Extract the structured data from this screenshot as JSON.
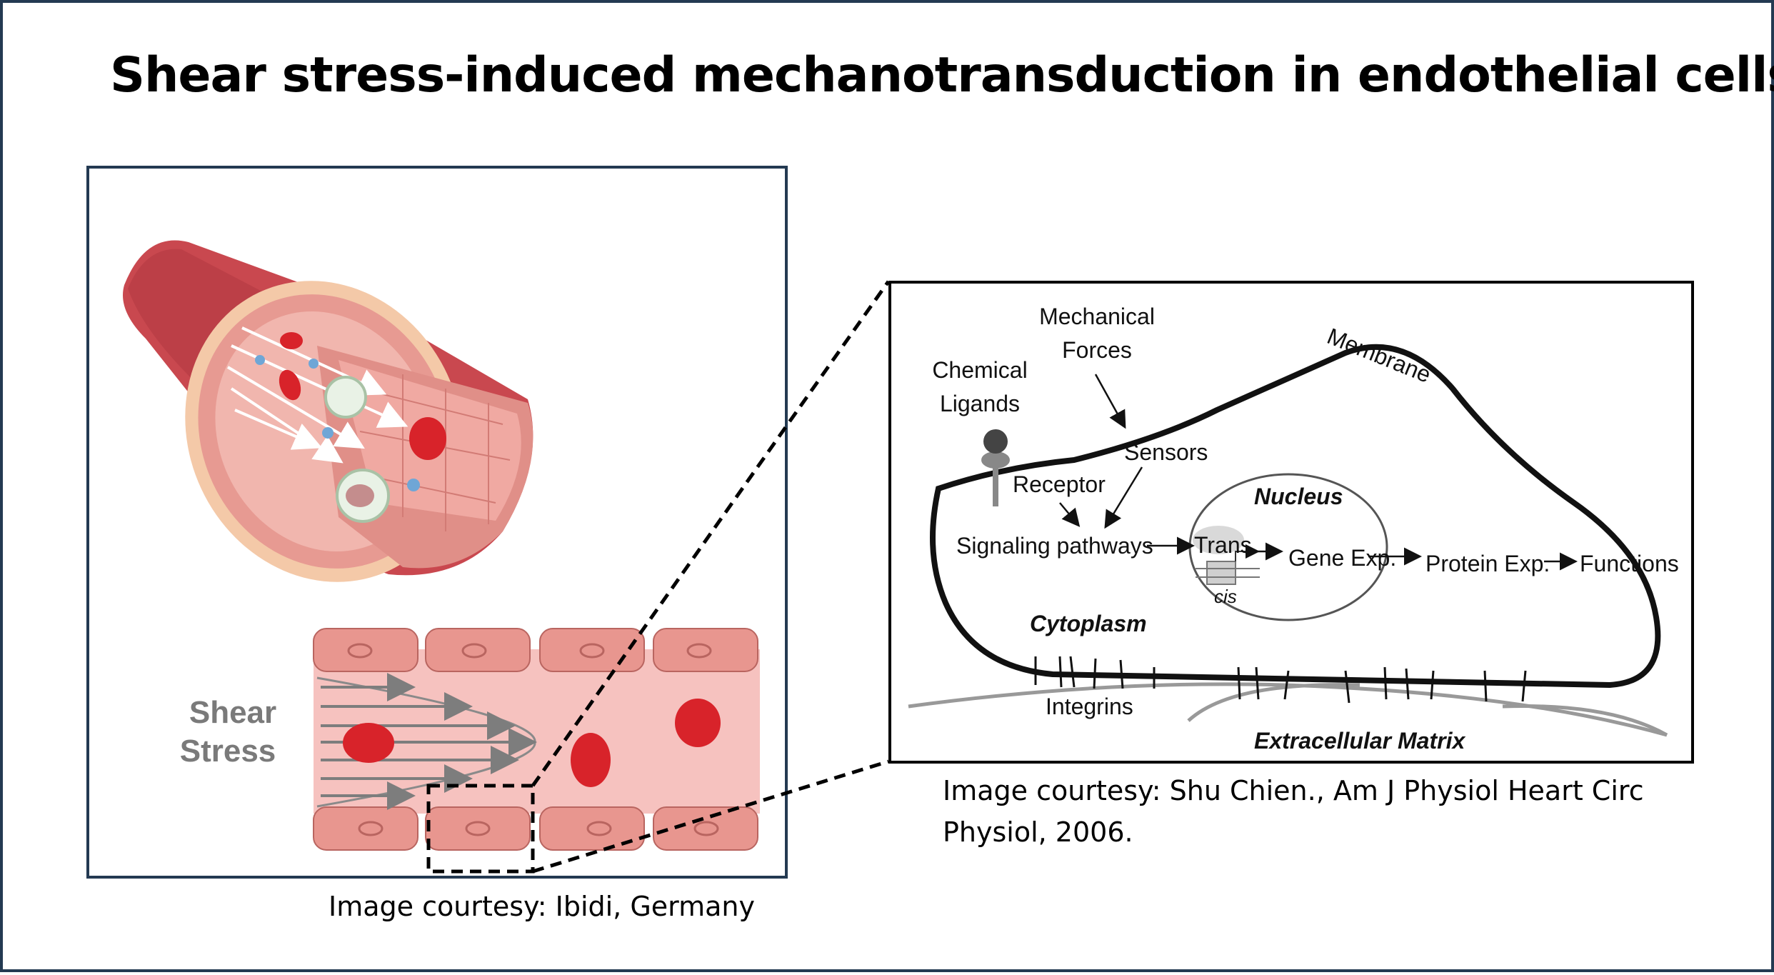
{
  "title": "Shear stress-induced mechanotransduction in endothelial cells",
  "left_panel": {
    "shear_label_line1": "Shear",
    "shear_label_line2": "Stress",
    "caption": "Image courtesy: Ibidi, Germany"
  },
  "right_panel": {
    "labels": {
      "mechanical_forces_1": "Mechanical",
      "mechanical_forces_2": "Forces",
      "chemical_ligands_1": "Chemical",
      "chemical_ligands_2": "Ligands",
      "membrane": "Membrane",
      "sensors": "Sensors",
      "receptor": "Receptor",
      "nucleus": "Nucleus",
      "signaling": "Signaling pathways",
      "trans": "Trans",
      "cis": "cis",
      "gene": "Gene Exp.",
      "protein": "Protein Exp.",
      "functions": "Functions",
      "cytoplasm": "Cytoplasm",
      "integrins": "Integrins",
      "ecm": "Extracellular Matrix"
    },
    "caption_line1": "Image courtesy: Shu Chien., Am J Physiol Heart Circ",
    "caption_line2": "Physiol, 2006."
  },
  "colors": {
    "border": "#243a52",
    "vessel": "#c9484f",
    "cell_pink": "#e8968f",
    "rbc": "#d8232a",
    "lumen": "#f6c2bf"
  }
}
